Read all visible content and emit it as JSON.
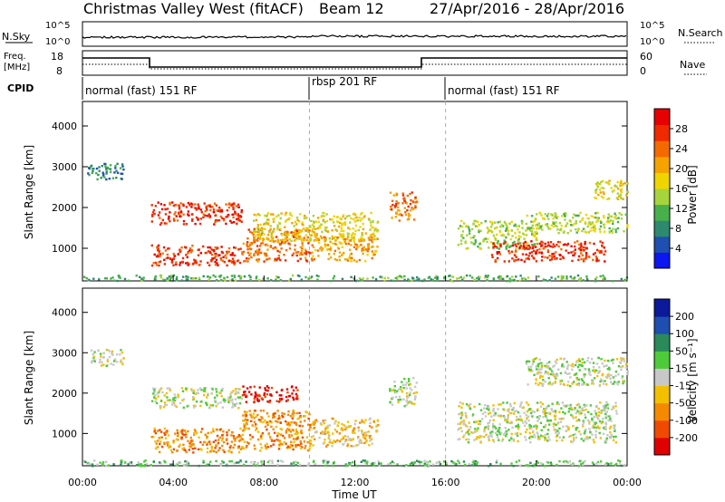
{
  "header": {
    "title": "Christmas Valley West (fitACF)",
    "beam": "Beam 12",
    "date_range": "27/Apr/2016 - 28/Apr/2016"
  },
  "nsky_panel": {
    "left_label": "N.Sky",
    "right_label": "N.Search",
    "left_ticks": [
      "10^5",
      "10^0"
    ],
    "right_ticks": [
      "10^5",
      "10^0"
    ]
  },
  "freq_panel": {
    "left_label_line1": "Freq.",
    "left_label_line2": "[MHz]",
    "left_ticks": [
      "18",
      "8"
    ],
    "right_ticks": [
      "60",
      "0"
    ],
    "right_label": "Nave"
  },
  "cpid_panel": {
    "label": "CPID",
    "segments": [
      {
        "label": "normal (fast) 151 RF",
        "start_hour": 0,
        "end_hour": 10
      },
      {
        "label": "rbsp 201 RF",
        "start_hour": 10,
        "end_hour": 16
      },
      {
        "label": "normal (fast) 151 RF",
        "start_hour": 16,
        "end_hour": 24
      }
    ]
  },
  "colors": {
    "power": [
      "#0b16f0",
      "#1f4fb0",
      "#2e8a6e",
      "#47b04a",
      "#a6d43a",
      "#f0d400",
      "#f5a300",
      "#f56a00",
      "#f02a00",
      "#e60000"
    ],
    "velocity": [
      "#e00000",
      "#f04a00",
      "#f58a00",
      "#f2c000",
      "#c8c8c8",
      "#4ecb3a",
      "#2a8a5a",
      "#1e4fb0",
      "#0a1a9a"
    ]
  },
  "chart_data": [
    {
      "type": "heatmap",
      "name_panel": "power",
      "ylabel": "Slant Range [km]",
      "y_ticks": [
        1000,
        2000,
        3000,
        4000
      ],
      "ylim": [
        200,
        4600
      ],
      "xlim": [
        0,
        24
      ],
      "x_ticks": [
        "00:00",
        "04:00",
        "08:00",
        "12:00",
        "16:00",
        "20:00",
        "00:00"
      ],
      "colorbar_label": "Power [dB]",
      "colorbar_ticks": [
        4,
        8,
        12,
        16,
        20,
        24,
        28
      ],
      "regions": [
        {
          "x0": 3.0,
          "x1": 7.0,
          "y0": 600,
          "y1": 1100,
          "level": 8
        },
        {
          "x0": 3.0,
          "x1": 7.0,
          "y0": 1600,
          "y1": 2150,
          "level": 8
        },
        {
          "x0": 7.0,
          "x1": 10.0,
          "y0": 700,
          "y1": 1500,
          "level": 7
        },
        {
          "x0": 7.5,
          "x1": 13.0,
          "y0": 1200,
          "y1": 1900,
          "level": 5
        },
        {
          "x0": 10.0,
          "x1": 13.0,
          "y0": 700,
          "y1": 1300,
          "level": 6
        },
        {
          "x0": 0.2,
          "x1": 1.8,
          "y0": 2700,
          "y1": 3100,
          "level": 2
        },
        {
          "x0": 13.5,
          "x1": 14.7,
          "y0": 1700,
          "y1": 2400,
          "level": 7
        },
        {
          "x0": 16.5,
          "x1": 20.0,
          "y0": 1000,
          "y1": 1700,
          "level": 4
        },
        {
          "x0": 18.0,
          "x1": 23.0,
          "y0": 700,
          "y1": 1200,
          "level": 8
        },
        {
          "x0": 19.5,
          "x1": 24.0,
          "y0": 1400,
          "y1": 1900,
          "level": 4
        },
        {
          "x0": 22.5,
          "x1": 24.0,
          "y0": 2200,
          "y1": 2700,
          "level": 5
        },
        {
          "x0": 0.0,
          "x1": 24.0,
          "y0": 220,
          "y1": 360,
          "level": 3
        }
      ]
    },
    {
      "type": "heatmap",
      "name_panel": "velocity",
      "ylabel": "Slant Range [km]",
      "y_ticks": [
        1000,
        2000,
        3000,
        4000
      ],
      "ylim": [
        200,
        4600
      ],
      "xlim": [
        0,
        24
      ],
      "x_ticks": [
        "00:00",
        "04:00",
        "08:00",
        "12:00",
        "16:00",
        "20:00",
        "00:00"
      ],
      "xlabel": "Time UT",
      "colorbar_label": "Velocity [m s⁻¹]",
      "colorbar_ticks": [
        "200",
        "100",
        "50",
        "15",
        "-15",
        "-50",
        "-100",
        "-200"
      ],
      "regions": [
        {
          "x0": 3.0,
          "x1": 7.0,
          "y0": 1650,
          "y1": 2150,
          "level": 4
        },
        {
          "x0": 3.0,
          "x1": 7.0,
          "y0": 550,
          "y1": 1150,
          "level": 2
        },
        {
          "x0": 7.0,
          "x1": 10.0,
          "y0": 600,
          "y1": 1600,
          "level": 2
        },
        {
          "x0": 7.0,
          "x1": 9.5,
          "y0": 1800,
          "y1": 2200,
          "level": 0
        },
        {
          "x0": 10.0,
          "x1": 13.0,
          "y0": 700,
          "y1": 1400,
          "level": 3
        },
        {
          "x0": 0.2,
          "x1": 1.8,
          "y0": 2700,
          "y1": 3100,
          "level": 4
        },
        {
          "x0": 13.5,
          "x1": 14.7,
          "y0": 1700,
          "y1": 2400,
          "level": 4
        },
        {
          "x0": 16.5,
          "x1": 23.5,
          "y0": 800,
          "y1": 1800,
          "level": 4
        },
        {
          "x0": 19.5,
          "x1": 24.0,
          "y0": 2200,
          "y1": 2900,
          "level": 4
        },
        {
          "x0": 0.0,
          "x1": 24.0,
          "y0": 220,
          "y1": 360,
          "level": 5
        }
      ]
    }
  ]
}
